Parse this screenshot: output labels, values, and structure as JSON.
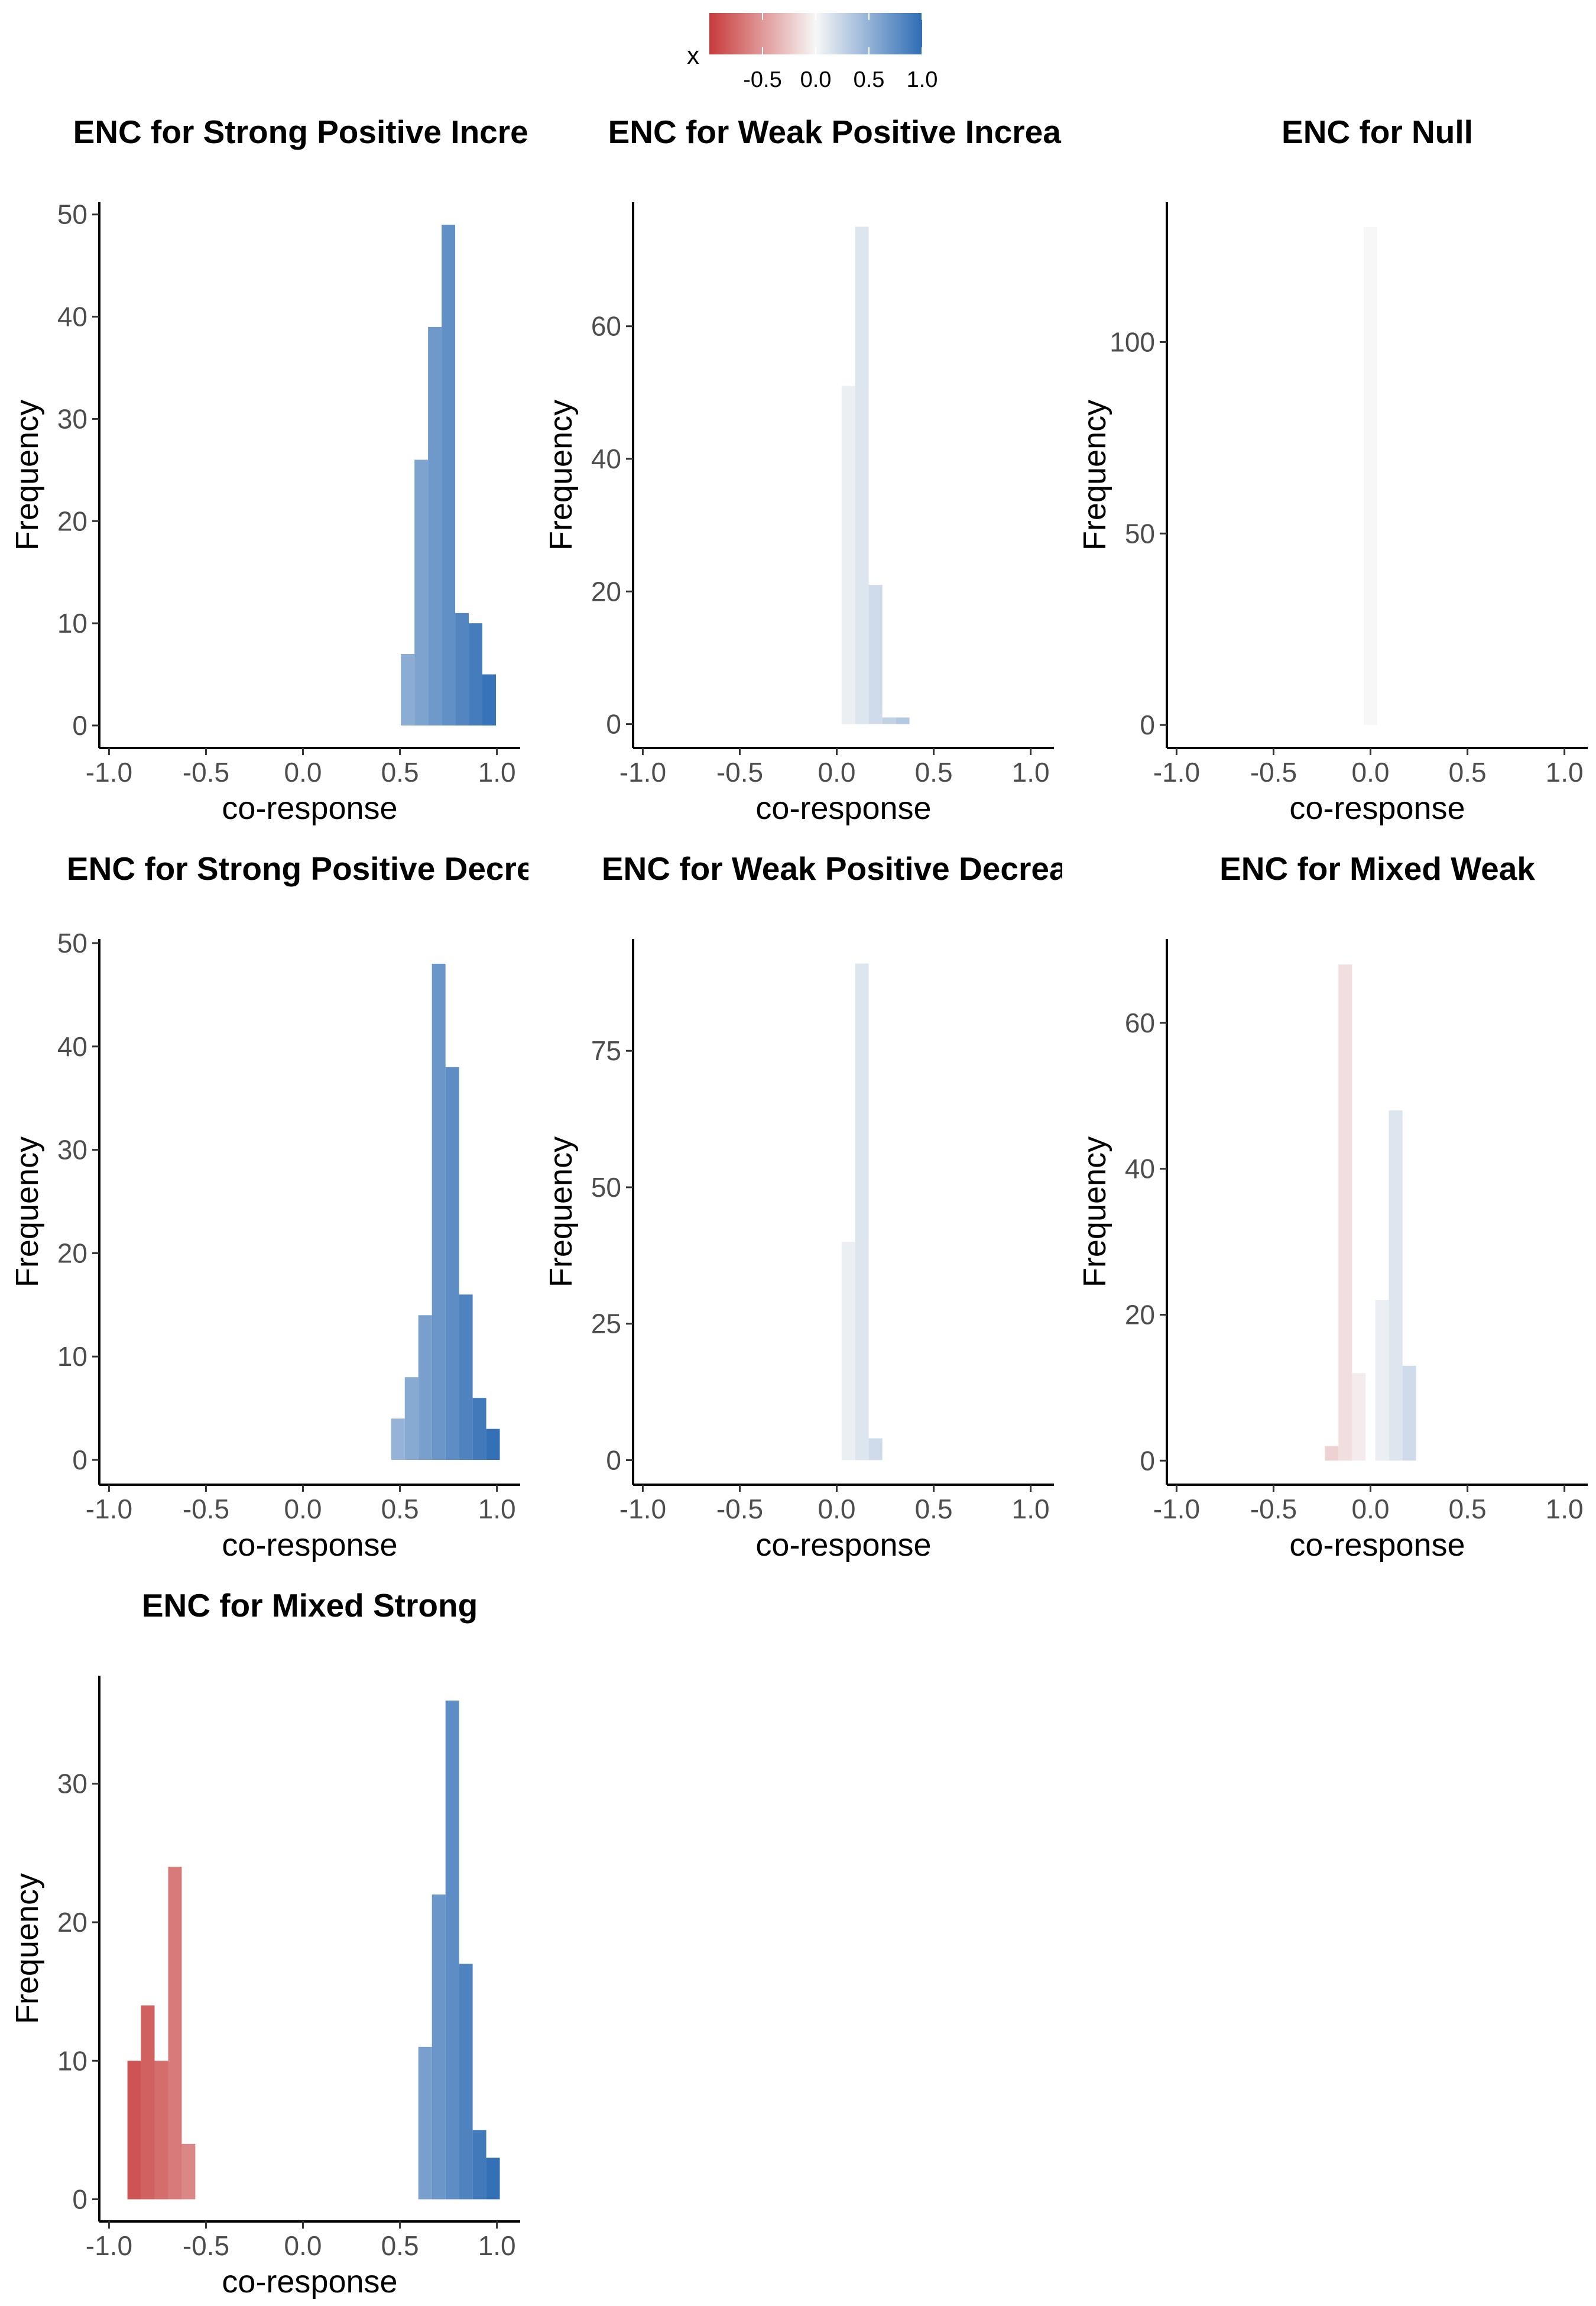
{
  "legend": {
    "title": "x",
    "tick_labels": [
      "-0.5",
      "0.0",
      "0.5",
      "1.0"
    ],
    "tick_values": [
      -0.5,
      0.0,
      0.5,
      1.0
    ],
    "range": [
      -1,
      1
    ],
    "colors": {
      "low": "#c83a3a",
      "mid": "#f7f7f7",
      "high": "#2f6db5"
    }
  },
  "chart_data": [
    {
      "type": "bar",
      "title": "ENC for Strong Positive Increa",
      "xlabel": "co-response",
      "ylabel": "Frequency",
      "xlim": [
        -1.05,
        1.12
      ],
      "ylim": [
        -2.2,
        51.2
      ],
      "x_ticks": [
        -1.0,
        -0.5,
        0.0,
        0.5,
        1.0
      ],
      "x_tick_labels": [
        "-1.0",
        "-0.5",
        "0.0",
        "0.5",
        "1.0"
      ],
      "y_ticks": [
        0,
        10,
        20,
        30,
        40,
        50
      ],
      "y_tick_labels": [
        "0",
        "10",
        "20",
        "30",
        "40",
        "50"
      ],
      "bins": [
        {
          "x": 0.54,
          "count": 7
        },
        {
          "x": 0.61,
          "count": 26
        },
        {
          "x": 0.68,
          "count": 39
        },
        {
          "x": 0.75,
          "count": 49
        },
        {
          "x": 0.82,
          "count": 11
        },
        {
          "x": 0.89,
          "count": 10
        },
        {
          "x": 0.96,
          "count": 5
        }
      ]
    },
    {
      "type": "bar",
      "title": "ENC for Weak Positive Increas",
      "xlabel": "co-response",
      "ylabel": "Frequency",
      "xlim": [
        -1.05,
        1.12
      ],
      "ylim": [
        -3.6,
        78.7
      ],
      "x_ticks": [
        -1.0,
        -0.5,
        0.0,
        0.5,
        1.0
      ],
      "x_tick_labels": [
        "-1.0",
        "-0.5",
        "0.0",
        "0.5",
        "1.0"
      ],
      "y_ticks": [
        0,
        20,
        40,
        60
      ],
      "y_tick_labels": [
        "0",
        "20",
        "40",
        "60"
      ],
      "bins": [
        {
          "x": 0.06,
          "count": 51
        },
        {
          "x": 0.13,
          "count": 75
        },
        {
          "x": 0.2,
          "count": 21
        },
        {
          "x": 0.27,
          "count": 1
        },
        {
          "x": 0.34,
          "count": 1
        }
      ]
    },
    {
      "type": "bar",
      "title": "ENC for Null",
      "xlabel": "co-response",
      "ylabel": "Frequency",
      "xlim": [
        -1.05,
        1.12
      ],
      "ylim": [
        -6.0,
        136.5
      ],
      "x_ticks": [
        -1.0,
        -0.5,
        0.0,
        0.5,
        1.0
      ],
      "x_tick_labels": [
        "-1.0",
        "-0.5",
        "0.0",
        "0.5",
        "1.0"
      ],
      "y_ticks": [
        0,
        50,
        100
      ],
      "y_tick_labels": [
        "0",
        "50",
        "100"
      ],
      "bins": [
        {
          "x": 0.0,
          "count": 130
        }
      ]
    },
    {
      "type": "bar",
      "title": "ENC for Strong Positive Decrea",
      "xlabel": "co-response",
      "ylabel": "Frequency",
      "xlim": [
        -1.05,
        1.12
      ],
      "ylim": [
        -2.4,
        50.4
      ],
      "x_ticks": [
        -1.0,
        -0.5,
        0.0,
        0.5,
        1.0
      ],
      "x_tick_labels": [
        "-1.0",
        "-0.5",
        "0.0",
        "0.5",
        "1.0"
      ],
      "y_ticks": [
        0,
        10,
        20,
        30,
        40,
        50
      ],
      "y_tick_labels": [
        "0",
        "10",
        "20",
        "30",
        "40",
        "50"
      ],
      "bins": [
        {
          "x": 0.49,
          "count": 4
        },
        {
          "x": 0.56,
          "count": 8
        },
        {
          "x": 0.63,
          "count": 14
        },
        {
          "x": 0.7,
          "count": 48
        },
        {
          "x": 0.77,
          "count": 38
        },
        {
          "x": 0.84,
          "count": 16
        },
        {
          "x": 0.91,
          "count": 6
        },
        {
          "x": 0.98,
          "count": 3
        }
      ]
    },
    {
      "type": "bar",
      "title": "ENC for Weak Positive Decreas",
      "xlabel": "co-response",
      "ylabel": "Frequency",
      "xlim": [
        -1.05,
        1.12
      ],
      "ylim": [
        -4.5,
        95.5
      ],
      "x_ticks": [
        -1.0,
        -0.5,
        0.0,
        0.5,
        1.0
      ],
      "x_tick_labels": [
        "-1.0",
        "-0.5",
        "0.0",
        "0.5",
        "1.0"
      ],
      "y_ticks": [
        0,
        25,
        50,
        75
      ],
      "y_tick_labels": [
        "0",
        "25",
        "50",
        "75"
      ],
      "bins": [
        {
          "x": 0.06,
          "count": 40
        },
        {
          "x": 0.13,
          "count": 91
        },
        {
          "x": 0.2,
          "count": 4
        }
      ]
    },
    {
      "type": "bar",
      "title": "ENC for Mixed Weak",
      "xlabel": "co-response",
      "ylabel": "Frequency",
      "xlim": [
        -1.05,
        1.12
      ],
      "ylim": [
        -3.3,
        71.5
      ],
      "x_ticks": [
        -1.0,
        -0.5,
        0.0,
        0.5,
        1.0
      ],
      "x_tick_labels": [
        "-1.0",
        "-0.5",
        "0.0",
        "0.5",
        "1.0"
      ],
      "y_ticks": [
        0,
        20,
        40,
        60
      ],
      "y_tick_labels": [
        "0",
        "20",
        "40",
        "60"
      ],
      "bins": [
        {
          "x": -0.2,
          "count": 2
        },
        {
          "x": -0.13,
          "count": 68
        },
        {
          "x": -0.06,
          "count": 12
        },
        {
          "x": 0.06,
          "count": 22
        },
        {
          "x": 0.13,
          "count": 48
        },
        {
          "x": 0.2,
          "count": 13
        }
      ]
    },
    {
      "type": "bar",
      "title": "ENC for Mixed Strong",
      "xlabel": "co-response",
      "ylabel": "Frequency",
      "xlim": [
        -1.05,
        1.12
      ],
      "ylim": [
        -1.6,
        37.8
      ],
      "x_ticks": [
        -1.0,
        -0.5,
        0.0,
        0.5,
        1.0
      ],
      "x_tick_labels": [
        "-1.0",
        "-0.5",
        "0.0",
        "0.5",
        "1.0"
      ],
      "y_ticks": [
        0,
        10,
        20,
        30
      ],
      "y_tick_labels": [
        "0",
        "10",
        "20",
        "30"
      ],
      "bins": [
        {
          "x": -0.87,
          "count": 10
        },
        {
          "x": -0.8,
          "count": 14
        },
        {
          "x": -0.73,
          "count": 10
        },
        {
          "x": -0.66,
          "count": 24
        },
        {
          "x": -0.59,
          "count": 4
        },
        {
          "x": 0.63,
          "count": 11
        },
        {
          "x": 0.7,
          "count": 22
        },
        {
          "x": 0.77,
          "count": 36
        },
        {
          "x": 0.84,
          "count": 17
        },
        {
          "x": 0.91,
          "count": 5
        },
        {
          "x": 0.98,
          "count": 3
        }
      ]
    }
  ]
}
